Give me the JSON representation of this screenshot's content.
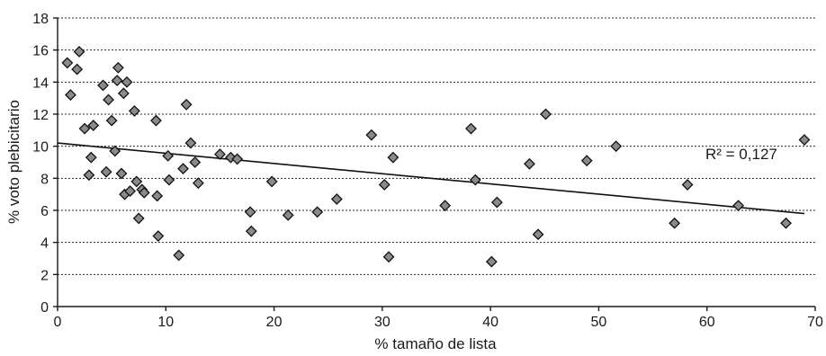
{
  "chart_data": {
    "type": "scatter",
    "xlabel": "% tamaño de lista",
    "ylabel": "% voto plebicitario",
    "xlim": [
      0,
      70
    ],
    "ylim": [
      0,
      18
    ],
    "x_ticks": [
      0,
      10,
      20,
      30,
      40,
      50,
      60,
      70
    ],
    "y_ticks": [
      0,
      2,
      4,
      6,
      8,
      10,
      12,
      14,
      16,
      18
    ],
    "grid": "horizontal dashed",
    "annotation": "R² = 0,127",
    "trendline": {
      "x": [
        0,
        69
      ],
      "y": [
        10.2,
        5.8
      ]
    },
    "points": {
      "x": [
        0.9,
        1.2,
        1.8,
        2.0,
        2.5,
        2.9,
        3.1,
        3.3,
        4.2,
        4.5,
        4.7,
        5.0,
        5.3,
        5.5,
        5.6,
        5.9,
        6.1,
        6.2,
        6.4,
        6.7,
        7.1,
        7.3,
        7.5,
        7.8,
        8.0,
        9.1,
        9.2,
        9.3,
        10.2,
        10.3,
        11.2,
        11.6,
        11.9,
        12.3,
        12.7,
        13.0,
        15.0,
        16.0,
        16.6,
        17.8,
        17.9,
        19.8,
        21.3,
        24.0,
        25.8,
        29.0,
        30.2,
        30.6,
        31.0,
        35.8,
        38.2,
        38.6,
        40.1,
        40.6,
        43.6,
        44.4,
        45.1,
        48.9,
        51.6,
        57.0,
        58.2,
        62.9,
        67.3,
        69.0
      ],
      "y": [
        15.2,
        13.2,
        14.8,
        15.9,
        11.1,
        8.2,
        9.3,
        11.3,
        13.8,
        8.4,
        12.9,
        11.6,
        9.7,
        14.1,
        14.9,
        8.3,
        13.3,
        7.0,
        14.0,
        7.2,
        12.2,
        7.8,
        5.5,
        7.3,
        7.1,
        11.6,
        6.9,
        4.4,
        9.4,
        7.9,
        3.2,
        8.6,
        12.6,
        10.2,
        9.0,
        7.7,
        9.5,
        9.3,
        9.2,
        5.9,
        4.7,
        7.8,
        5.7,
        5.9,
        6.7,
        10.7,
        7.6,
        3.1,
        9.3,
        6.3,
        11.1,
        7.9,
        2.8,
        6.5,
        8.9,
        4.5,
        12.0,
        9.1,
        10.0,
        5.2,
        7.6,
        6.3,
        5.2,
        10.4
      ]
    }
  }
}
